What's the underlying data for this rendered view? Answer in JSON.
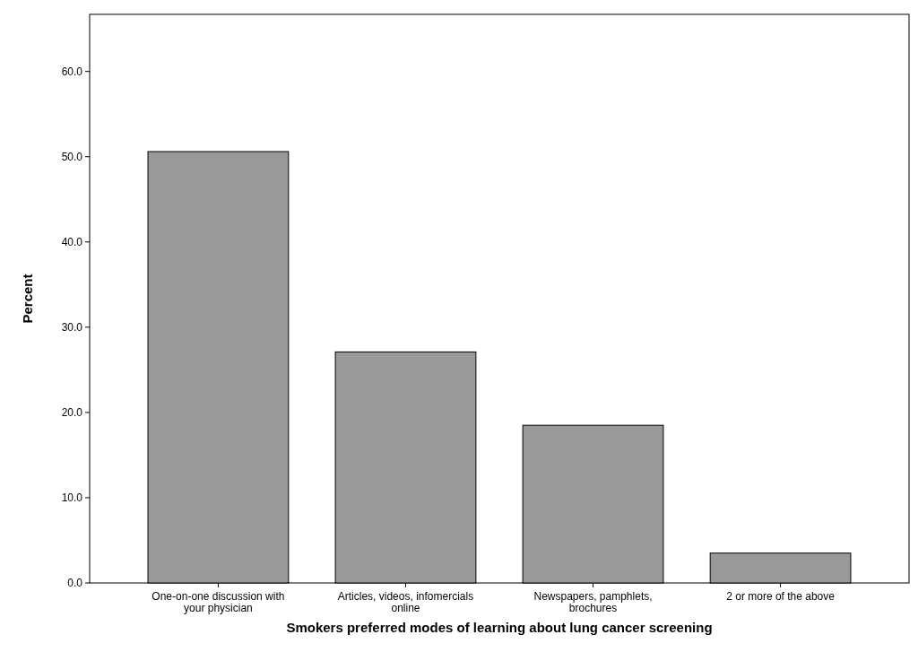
{
  "chart_data": {
    "type": "bar",
    "xlabel": "Smokers preferred modes of learning about lung cancer screening",
    "ylabel": "Percent",
    "categories": [
      "One-on-one discussion with your physician",
      "Articles, videos, infomercials online",
      "Newspapers, pamphlets, brochures",
      "2 or more of the above"
    ],
    "values": [
      50.6,
      27.1,
      18.5,
      3.5
    ],
    "color": "#999999",
    "ylim": [
      0,
      66.7
    ],
    "yticks": [
      {
        "value": 0,
        "label": "0.0"
      },
      {
        "value": 10,
        "label": "10.0"
      },
      {
        "value": 20,
        "label": "20.0"
      },
      {
        "value": 30,
        "label": "30.0"
      },
      {
        "value": 40,
        "label": "40.0"
      },
      {
        "value": 50,
        "label": "50.0"
      },
      {
        "value": 60,
        "label": "60.0"
      }
    ]
  }
}
